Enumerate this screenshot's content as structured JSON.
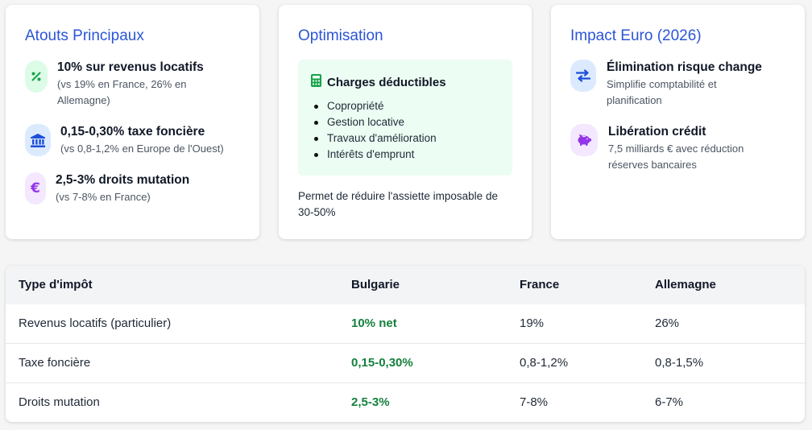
{
  "colors": {
    "accent_blue": "#2b55d6",
    "green_text": "#15803d",
    "green_bg": "#dcfce7",
    "blue_bg": "#dbeafe",
    "purple_bg": "#f3e8ff",
    "purple": "#9333ea"
  },
  "cards": {
    "atouts": {
      "title": "Atouts Principaux",
      "items": [
        {
          "icon": "percent-icon",
          "title": "10% sur revenus locatifs",
          "sub1": "(vs 19% en France, 26% en",
          "sub2": "Allemagne)"
        },
        {
          "icon": "bank-icon",
          "title": "0,15-0,30% taxe foncière",
          "sub1": "(vs 0,8-1,2% en Europe de l'Ouest)"
        },
        {
          "icon": "euro-icon",
          "title": "2,5-3% droits mutation",
          "sub1": "(vs 7-8% en France)"
        }
      ]
    },
    "optimisation": {
      "title": "Optimisation",
      "box_icon": "calculator-icon",
      "box_title": "Charges déductibles",
      "list": [
        "Copropriété",
        "Gestion locative",
        "Travaux d'amélioration",
        "Intérêts d'emprunt"
      ],
      "note_line1": "Permet de réduire l'assiette imposable de",
      "note_line2": "30-50%"
    },
    "impact": {
      "title": "Impact Euro (2026)",
      "items": [
        {
          "icon": "exchange-arrows-icon",
          "title": "Élimination risque change",
          "sub1": "Simplifie comptabilité et",
          "sub2": "planification"
        },
        {
          "icon": "piggy-bank-icon",
          "title": "Libération crédit",
          "sub1": "7,5 milliards € avec réduction",
          "sub2": "réserves bancaires"
        }
      ]
    }
  },
  "table": {
    "headers": [
      "Type d'impôt",
      "Bulgarie",
      "France",
      "Allemagne"
    ],
    "rows": [
      [
        "Revenus locatifs (particulier)",
        "10% net",
        "19%",
        "26%"
      ],
      [
        "Taxe foncière",
        "0,15-0,30%",
        "0,8-1,2%",
        "0,8-1,5%"
      ],
      [
        "Droits mutation",
        "2,5-3%",
        "7-8%",
        "6-7%"
      ]
    ]
  }
}
